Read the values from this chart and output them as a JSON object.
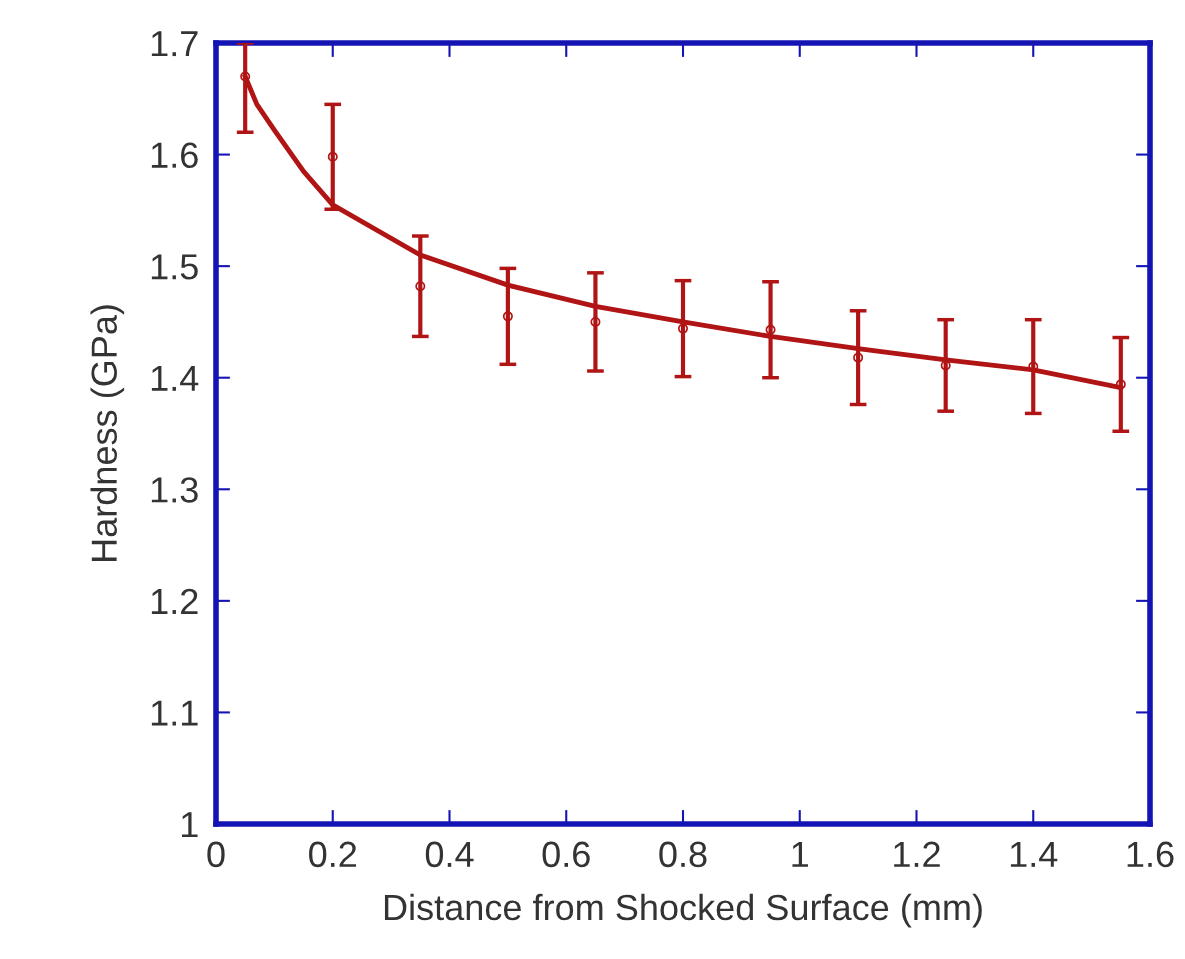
{
  "chart_data": {
    "type": "scatter",
    "xlabel": "Distance from Shocked Surface (mm)",
    "ylabel": "Hardness (GPa)",
    "xlim": [
      0,
      1.6
    ],
    "ylim": [
      1,
      1.7
    ],
    "xticks": [
      0,
      0.2,
      0.4,
      0.6,
      0.8,
      1,
      1.2,
      1.4,
      1.6
    ],
    "yticks": [
      1,
      1.1,
      1.2,
      1.3,
      1.4,
      1.5,
      1.6,
      1.7
    ],
    "grid": false,
    "legend": false,
    "series": [
      {
        "color": "#b01414",
        "marker": "circle",
        "x": [
          0.05,
          0.2,
          0.35,
          0.5,
          0.65,
          0.8,
          0.95,
          1.1,
          1.25,
          1.4,
          1.55
        ],
        "values": [
          1.67,
          1.598,
          1.482,
          1.455,
          1.45,
          1.444,
          1.443,
          1.418,
          1.411,
          1.41,
          1.394
        ],
        "errors": [
          [
            1.62,
            1.7
          ],
          0.047,
          0.045,
          0.043,
          0.044,
          0.043,
          0.043,
          0.042,
          0.041,
          0.042,
          0.042
        ]
      },
      {
        "type": "line",
        "color": "#b01414",
        "marker": "none",
        "line_style": "solid",
        "x": [
          0.05,
          0.07,
          0.1,
          0.15,
          0.2,
          0.35,
          0.5,
          0.65,
          0.8,
          0.95,
          1.1,
          1.25,
          1.4,
          1.55
        ],
        "values": [
          1.67,
          1.645,
          1.622,
          1.585,
          1.555,
          1.51,
          1.483,
          1.464,
          1.45,
          1.437,
          1.426,
          1.416,
          1.407,
          1.391
        ]
      }
    ]
  }
}
